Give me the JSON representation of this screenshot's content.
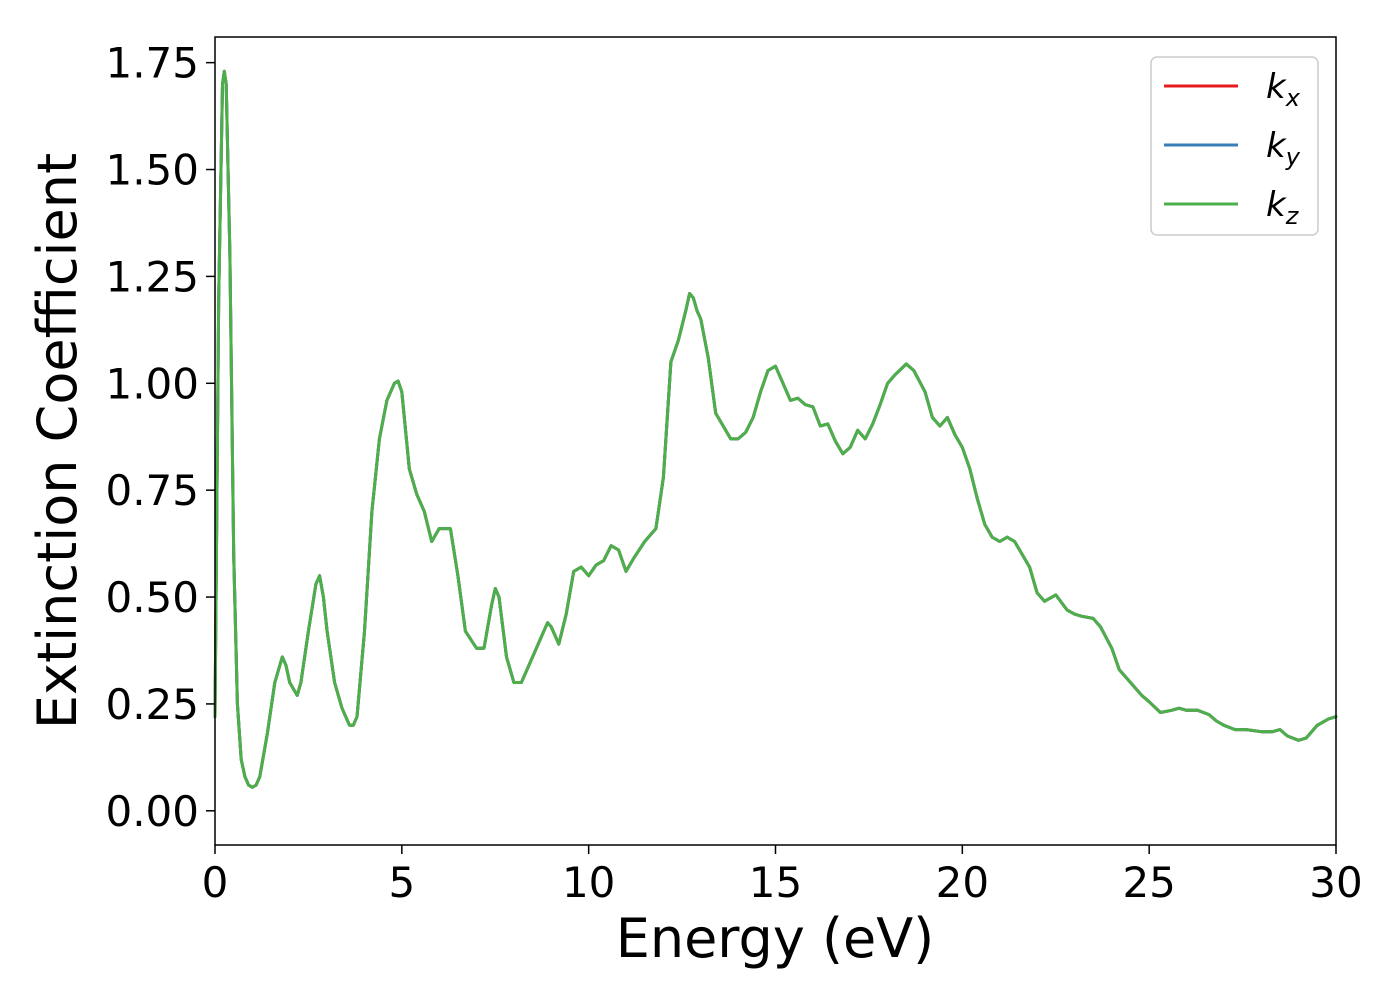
{
  "chart_data": {
    "type": "line",
    "title": "",
    "xlabel": "Energy (eV)",
    "ylabel": "Extinction Coefficient",
    "xlim": [
      0,
      30
    ],
    "ylim": [
      -0.08,
      1.81
    ],
    "x_ticks": [
      0,
      5,
      10,
      15,
      20,
      25,
      30
    ],
    "x_tick_labels": [
      "0",
      "5",
      "10",
      "15",
      "20",
      "25",
      "30"
    ],
    "y_ticks": [
      0,
      0.25,
      0.5,
      0.75,
      1.0,
      1.25,
      1.5,
      1.75
    ],
    "y_tick_labels": [
      "0.00",
      "0.25",
      "0.50",
      "0.75",
      "1.00",
      "1.25",
      "1.50",
      "1.75"
    ],
    "grid": false,
    "legend_placement": "top-right",
    "legend": [
      {
        "base": "k",
        "sub": "x",
        "color": "#e41a1c"
      },
      {
        "base": "k",
        "sub": "y",
        "color": "#377eb8"
      },
      {
        "base": "k",
        "sub": "z",
        "color": "#4daf4a"
      }
    ],
    "x": [
      0,
      0.1,
      0.2,
      0.25,
      0.3,
      0.4,
      0.5,
      0.6,
      0.7,
      0.8,
      0.9,
      1.0,
      1.1,
      1.2,
      1.4,
      1.6,
      1.8,
      1.9,
      2.0,
      2.2,
      2.3,
      2.5,
      2.7,
      2.8,
      2.9,
      3.0,
      3.2,
      3.4,
      3.6,
      3.7,
      3.8,
      4.0,
      4.2,
      4.4,
      4.6,
      4.8,
      4.9,
      5.0,
      5.2,
      5.4,
      5.6,
      5.8,
      6.0,
      6.3,
      6.5,
      6.7,
      7.0,
      7.2,
      7.4,
      7.5,
      7.6,
      7.8,
      8.0,
      8.2,
      8.5,
      8.8,
      8.9,
      9.0,
      9.2,
      9.4,
      9.6,
      9.8,
      10.0,
      10.2,
      10.4,
      10.6,
      10.8,
      11.0,
      11.2,
      11.5,
      11.8,
      12.0,
      12.2,
      12.4,
      12.6,
      12.7,
      12.8,
      12.9,
      13.0,
      13.2,
      13.4,
      13.6,
      13.8,
      14.0,
      14.2,
      14.4,
      14.6,
      14.8,
      15.0,
      15.2,
      15.4,
      15.6,
      15.8,
      16.0,
      16.2,
      16.4,
      16.6,
      16.8,
      17.0,
      17.2,
      17.4,
      17.6,
      17.8,
      18.0,
      18.2,
      18.5,
      18.7,
      19.0,
      19.2,
      19.4,
      19.6,
      19.8,
      20.0,
      20.2,
      20.4,
      20.6,
      20.8,
      21.0,
      21.2,
      21.4,
      21.6,
      21.8,
      22.0,
      22.2,
      22.5,
      22.8,
      23.0,
      23.2,
      23.5,
      23.7,
      24.0,
      24.2,
      24.5,
      24.8,
      25.0,
      25.3,
      25.6,
      25.8,
      26.0,
      26.3,
      26.6,
      26.8,
      27.0,
      27.3,
      27.6,
      28.0,
      28.3,
      28.5,
      28.7,
      29.0,
      29.2,
      29.5,
      29.8,
      30.0
    ],
    "y": [
      0.22,
      1.2,
      1.7,
      1.73,
      1.7,
      1.3,
      0.6,
      0.25,
      0.12,
      0.08,
      0.06,
      0.055,
      0.06,
      0.08,
      0.18,
      0.3,
      0.36,
      0.34,
      0.3,
      0.27,
      0.3,
      0.42,
      0.53,
      0.55,
      0.5,
      0.42,
      0.3,
      0.24,
      0.2,
      0.2,
      0.22,
      0.42,
      0.7,
      0.87,
      0.96,
      1.0,
      1.005,
      0.98,
      0.8,
      0.74,
      0.7,
      0.63,
      0.66,
      0.66,
      0.55,
      0.42,
      0.38,
      0.38,
      0.48,
      0.52,
      0.5,
      0.36,
      0.3,
      0.3,
      0.36,
      0.42,
      0.44,
      0.43,
      0.39,
      0.46,
      0.56,
      0.57,
      0.55,
      0.575,
      0.585,
      0.62,
      0.61,
      0.56,
      0.59,
      0.63,
      0.66,
      0.78,
      1.05,
      1.1,
      1.17,
      1.21,
      1.2,
      1.17,
      1.15,
      1.06,
      0.93,
      0.9,
      0.87,
      0.87,
      0.885,
      0.92,
      0.98,
      1.03,
      1.04,
      1.0,
      0.96,
      0.965,
      0.95,
      0.945,
      0.9,
      0.905,
      0.865,
      0.835,
      0.85,
      0.89,
      0.87,
      0.905,
      0.95,
      1.0,
      1.02,
      1.045,
      1.03,
      0.98,
      0.92,
      0.9,
      0.92,
      0.88,
      0.85,
      0.8,
      0.73,
      0.67,
      0.64,
      0.63,
      0.64,
      0.63,
      0.6,
      0.57,
      0.51,
      0.49,
      0.505,
      0.47,
      0.46,
      0.455,
      0.45,
      0.43,
      0.38,
      0.33,
      0.3,
      0.27,
      0.255,
      0.23,
      0.235,
      0.24,
      0.235,
      0.235,
      0.225,
      0.21,
      0.2,
      0.19,
      0.19,
      0.185,
      0.185,
      0.19,
      0.175,
      0.165,
      0.17,
      0.2,
      0.215,
      0.22
    ],
    "series": [
      {
        "name": "k_x",
        "color": "#e41a1c",
        "same_as": "y"
      },
      {
        "name": "k_y",
        "color": "#377eb8",
        "same_as": "y"
      },
      {
        "name": "k_z",
        "color": "#4daf4a",
        "same_as": "y"
      }
    ]
  }
}
